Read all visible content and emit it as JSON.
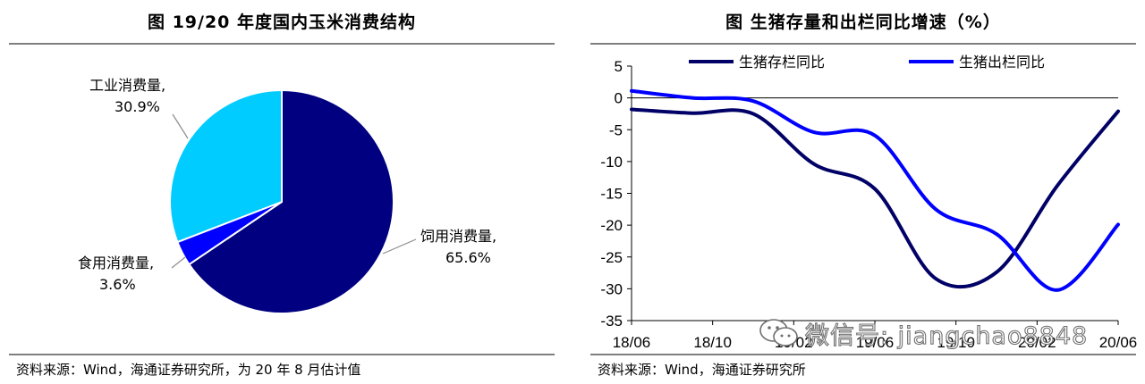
{
  "left_panel": {
    "title": "图  19/20 年度国内玉米消费结构",
    "source": "资料来源：Wind，海通证券研究所，为 20 年 8 月估计值"
  },
  "right_panel": {
    "title": "图  生猪存量和出栏同比增速（%）",
    "source": "资料来源：Wind，海通证券研究所"
  },
  "watermark": {
    "text": "微信号: jiangchao8848"
  },
  "chart_data": [
    {
      "type": "pie",
      "title": "图  19/20 年度国内玉米消费结构",
      "slices": [
        {
          "name": "饲用消费量",
          "value": 65.6,
          "label": "65.6%",
          "color": "#000080"
        },
        {
          "name": "食用消费量",
          "value": 3.6,
          "label": "3.6%",
          "color": "#0000ff"
        },
        {
          "name": "工业消费量",
          "value": 30.9,
          "label": "30.9%",
          "color": "#00ccff"
        }
      ]
    },
    {
      "type": "line",
      "title": "图  生猪存量和出栏同比增速（%）",
      "x_tick_labels": [
        "18/06",
        "18/10",
        "19/02",
        "19/06",
        "19/10",
        "20/02",
        "20/06"
      ],
      "x": [
        "2018-06",
        "2018-09",
        "2018-12",
        "2019-03",
        "2019-06",
        "2019-09",
        "2019-12",
        "2020-03",
        "2020-06"
      ],
      "ylim": [
        -35,
        5
      ],
      "yticks": [
        5,
        0,
        -5,
        -10,
        -15,
        -20,
        -25,
        -30,
        -35
      ],
      "legend_position": "top",
      "series": [
        {
          "name": "生猪存栏同比",
          "color": "#000066",
          "values": [
            -1.8,
            -2.4,
            -2.5,
            -10.4,
            -14.3,
            -28.4,
            -27.4,
            -13.8,
            -2.1
          ]
        },
        {
          "name": "生猪出栏同比",
          "color": "#0000ff",
          "values": [
            1.1,
            0.0,
            -0.5,
            -5.4,
            -5.9,
            -17.5,
            -21.4,
            -30.2,
            -19.9
          ]
        }
      ]
    }
  ]
}
